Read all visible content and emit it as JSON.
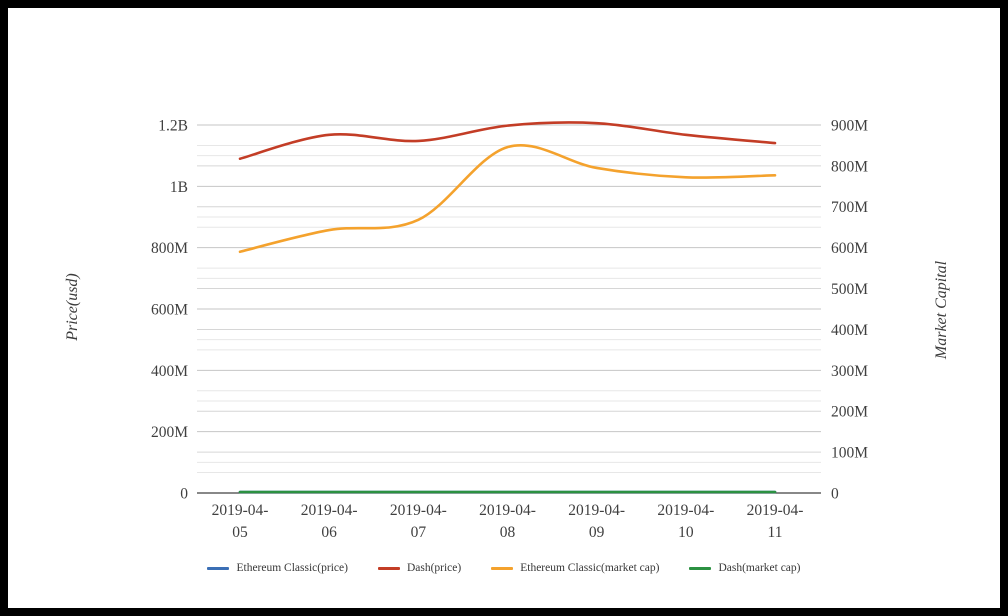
{
  "chart_data": {
    "type": "line",
    "title": "",
    "x_categories": [
      "2019-04-05",
      "2019-04-06",
      "2019-04-07",
      "2019-04-08",
      "2019-04-09",
      "2019-04-10",
      "2019-04-11"
    ],
    "left_axis": {
      "label": "Price(usd)",
      "tick_labels": [
        "0",
        "200M",
        "400M",
        "600M",
        "800M",
        "1B",
        "1.2B"
      ],
      "tick_values_millions": [
        0,
        200,
        400,
        600,
        800,
        1000,
        1200
      ],
      "range_millions": [
        0,
        1200
      ],
      "minor_step_millions": 100
    },
    "right_axis": {
      "label": "Market Capital",
      "tick_labels": [
        "0",
        "100M",
        "200M",
        "300M",
        "400M",
        "500M",
        "600M",
        "700M",
        "800M",
        "900M"
      ],
      "tick_values_millions": [
        0,
        100,
        200,
        300,
        400,
        500,
        600,
        700,
        800,
        900
      ],
      "range_millions": [
        0,
        900
      ],
      "minor_step_millions": 50
    },
    "series": [
      {
        "name": "Ethereum Classic(price)",
        "color": "#3b6fb5",
        "axis": "left",
        "values_millions": [
          0,
          0,
          0,
          0,
          0,
          0,
          0
        ]
      },
      {
        "name": "Dash(price)",
        "color": "#c33d26",
        "axis": "left",
        "values_millions": [
          1090,
          1168,
          1148,
          1198,
          1206,
          1168,
          1141
        ]
      },
      {
        "name": "Ethereum Classic(market cap)",
        "color": "#f4a22d",
        "axis": "right",
        "values_millions": [
          590,
          643,
          668,
          846,
          795,
          772,
          777
        ]
      },
      {
        "name": "Dash(market cap)",
        "color": "#2b9141",
        "axis": "right",
        "values_millions": [
          0,
          0,
          0,
          0,
          0,
          0,
          0
        ]
      }
    ],
    "legend_position": "bottom",
    "grid": true,
    "smooth": true,
    "colors": {
      "axis_line": "#404040",
      "grid_major": "#c6c6c6",
      "grid_right_major": "#d6d6d6",
      "grid_minor": "#e7e7e7",
      "text": "#3f3f3f"
    }
  }
}
